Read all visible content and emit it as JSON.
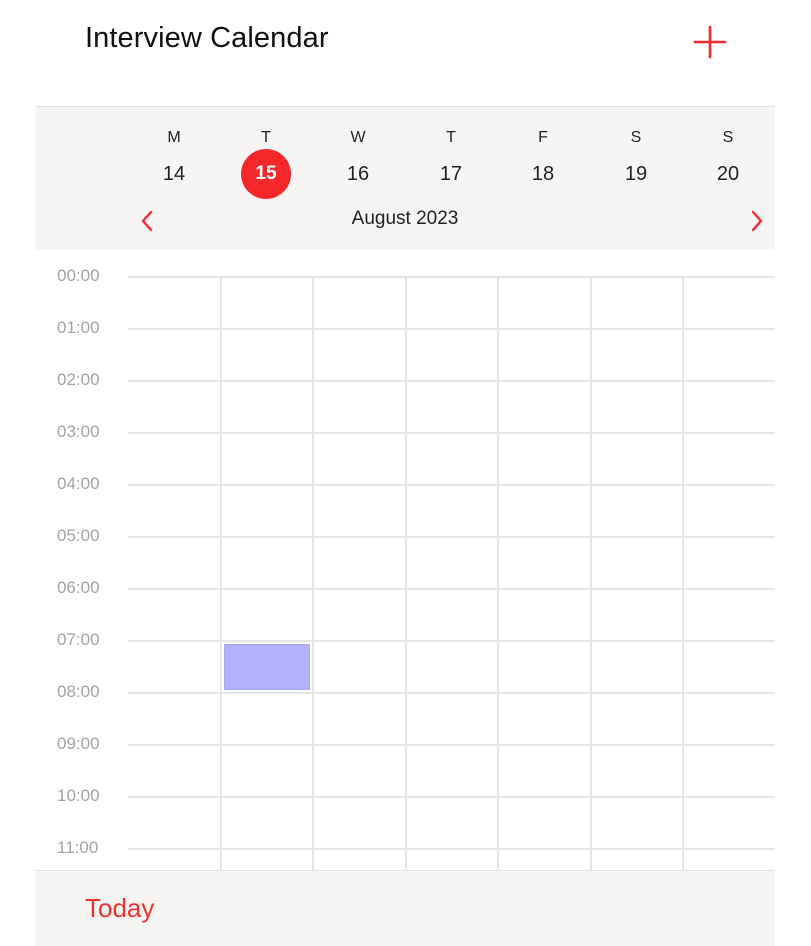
{
  "header": {
    "title": "Interview Calendar",
    "add_icon": "plus-icon"
  },
  "week": {
    "days": [
      {
        "letter": "M",
        "date": "14",
        "selected": false
      },
      {
        "letter": "T",
        "date": "15",
        "selected": true
      },
      {
        "letter": "W",
        "date": "16",
        "selected": false
      },
      {
        "letter": "T",
        "date": "17",
        "selected": false
      },
      {
        "letter": "F",
        "date": "18",
        "selected": false
      },
      {
        "letter": "S",
        "date": "19",
        "selected": false
      },
      {
        "letter": "S",
        "date": "20",
        "selected": false
      }
    ],
    "month_label": "August 2023",
    "prev_icon": "chevron-left-icon",
    "next_icon": "chevron-right-icon"
  },
  "grid": {
    "hours": [
      "00:00",
      "01:00",
      "02:00",
      "03:00",
      "04:00",
      "05:00",
      "06:00",
      "07:00",
      "08:00",
      "09:00",
      "10:00",
      "11:00"
    ],
    "events": [
      {
        "day": "15",
        "start": "07:00",
        "end": "08:00"
      }
    ]
  },
  "footer": {
    "today_label": "Today"
  },
  "colors": {
    "accent": "#f7282c",
    "event": "#b3b3fb",
    "header_bg": "#f6f5f3",
    "grid_line": "#e6e6e6",
    "time_label": "#a3a3a3"
  }
}
